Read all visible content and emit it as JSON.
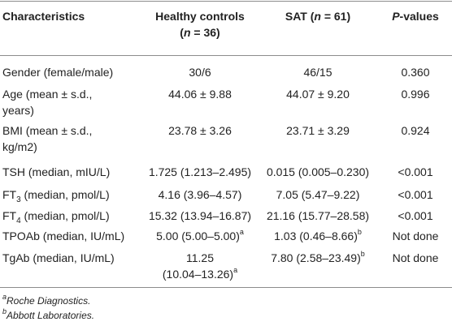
{
  "table": {
    "headers": {
      "characteristics": "Characteristics",
      "healthy_line1": "Healthy controls",
      "healthy_n_open": "(",
      "healthy_n_var": "n",
      "healthy_n_value": " = 36)",
      "sat_label": "SAT (",
      "sat_n_var": "n",
      "sat_n_value": " = 61)",
      "pvalues_var": "P",
      "pvalues_rest": "-values"
    },
    "rows": [
      {
        "label": "Gender (female/male)",
        "healthy": "30/6",
        "sat": "46/15",
        "p": "0.360"
      },
      {
        "label_line1": "Age (mean ± s.d.,",
        "label_line2": "years)",
        "healthy": "44.06 ± 9.88",
        "sat": "44.07 ± 9.20",
        "p": "0.996"
      },
      {
        "label_line1": "BMI (mean ± s.d.,",
        "label_line2": "kg/m2)",
        "healthy": "23.78 ± 3.26",
        "sat": "23.71 ± 3.29",
        "p": "0.924"
      },
      {
        "label": "TSH (median, mIU/L)",
        "healthy": "1.725 (1.213–2.495)",
        "sat": "0.015 (0.005–0.230)",
        "p": "<0.001"
      },
      {
        "label_prefix": "FT",
        "label_sub": "3",
        "label_suffix": " (median, pmol/L)",
        "healthy": "4.16 (3.96–4.57)",
        "sat": "7.05 (5.47–9.22)",
        "p": "<0.001"
      },
      {
        "label_prefix": "FT",
        "label_sub": "4",
        "label_suffix": " (median, pmol/L)",
        "healthy": "15.32 (13.94–16.87)",
        "sat": "21.16 (15.77–28.58)",
        "p": "<0.001"
      },
      {
        "label": "TPOAb (median, IU/mL)",
        "healthy": "5.00 (5.00–5.00)",
        "healthy_sup": "a",
        "sat": "1.03 (0.46–8.66)",
        "sat_sup": "b",
        "p": "Not done"
      },
      {
        "label": "TgAb (median, IU/mL)",
        "healthy_line1": "11.25",
        "healthy_line2": "(10.04–13.26)",
        "healthy_sup": "a",
        "sat": "7.80 (2.58–23.49)",
        "sat_sup": "b",
        "p": "Not done"
      }
    ]
  },
  "footnotes": [
    {
      "mark": "a",
      "text": "Roche Diagnostics."
    },
    {
      "mark": "b",
      "text": "Abbott Laboratories."
    }
  ]
}
